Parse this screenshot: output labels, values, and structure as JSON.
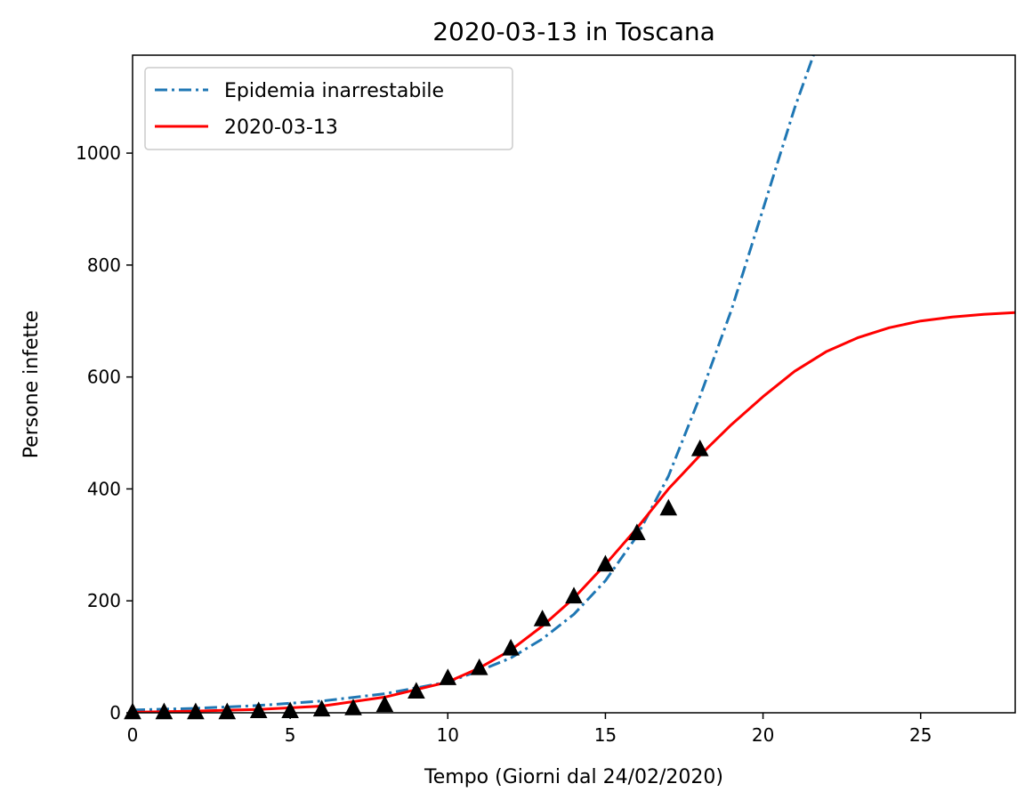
{
  "chart_data": {
    "type": "line",
    "title": "2020-03-13 in Toscana",
    "xlabel": "Tempo (Giorni dal 24/02/2020)",
    "ylabel": "Persone infette",
    "xlim": [
      0,
      28
    ],
    "ylim": [
      0,
      1175
    ],
    "xticks": [
      0,
      5,
      10,
      15,
      20,
      25
    ],
    "yticks": [
      0,
      200,
      400,
      600,
      800,
      1000
    ],
    "grid": false,
    "legend_position": "top-left",
    "series": [
      {
        "name": "Epidemia inarrestabile",
        "style": "dash-dot",
        "color": "#1f77b4",
        "x": [
          0,
          2,
          4,
          6,
          8,
          10,
          11,
          12,
          13,
          14,
          15,
          16,
          17,
          18,
          19,
          20,
          21,
          21.6
        ],
        "y": [
          5,
          8,
          13,
          21,
          34,
          55,
          75,
          98,
          132,
          176,
          236,
          316,
          423,
          565,
          720,
          900,
          1080,
          1175
        ]
      },
      {
        "name": "2020-03-13",
        "style": "solid",
        "color": "#ff0000",
        "x": [
          0,
          2,
          4,
          6,
          8,
          10,
          11,
          12,
          13,
          14,
          15,
          16,
          17,
          18,
          19,
          20,
          21,
          22,
          23,
          24,
          25,
          26,
          27,
          28
        ],
        "y": [
          1,
          3,
          6,
          12,
          28,
          55,
          80,
          112,
          155,
          205,
          265,
          330,
          400,
          460,
          515,
          565,
          610,
          645,
          670,
          688,
          700,
          707,
          712,
          715
        ]
      }
    ],
    "observations": {
      "marker": "triangle",
      "color": "#000000",
      "x": [
        0,
        1,
        2,
        3,
        4,
        5,
        6,
        7,
        8,
        9,
        10,
        11,
        12,
        13,
        14,
        15,
        16,
        17,
        18
      ],
      "y": [
        0,
        0,
        0,
        0,
        2,
        2,
        5,
        7,
        13,
        37,
        61,
        79,
        114,
        166,
        207,
        264,
        320,
        364,
        470
      ]
    }
  }
}
